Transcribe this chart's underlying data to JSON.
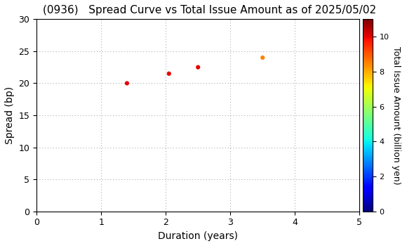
{
  "title": "(0936)   Spread Curve vs Total Issue Amount as of 2025/05/02",
  "xlabel": "Duration (years)",
  "ylabel": "Spread (bp)",
  "colorbar_label": "Total Issue Amount (billion yen)",
  "xlim": [
    0,
    5
  ],
  "ylim": [
    0,
    30
  ],
  "xticks": [
    0,
    1,
    2,
    3,
    4,
    5
  ],
  "yticks": [
    0,
    5,
    10,
    15,
    20,
    25,
    30
  ],
  "points": [
    {
      "duration": 1.4,
      "spread": 20.0,
      "amount": 10.0
    },
    {
      "duration": 2.05,
      "spread": 21.5,
      "amount": 10.0
    },
    {
      "duration": 2.5,
      "spread": 22.5,
      "amount": 10.0
    },
    {
      "duration": 3.5,
      "spread": 24.0,
      "amount": 8.5
    }
  ],
  "cmap": "jet",
  "vmin": 0,
  "vmax": 11,
  "colorbar_ticks": [
    0,
    2,
    4,
    6,
    8,
    10
  ],
  "marker_size": 20,
  "background_color": "#ffffff",
  "grid_color": "#999999",
  "grid_linestyle": ":"
}
